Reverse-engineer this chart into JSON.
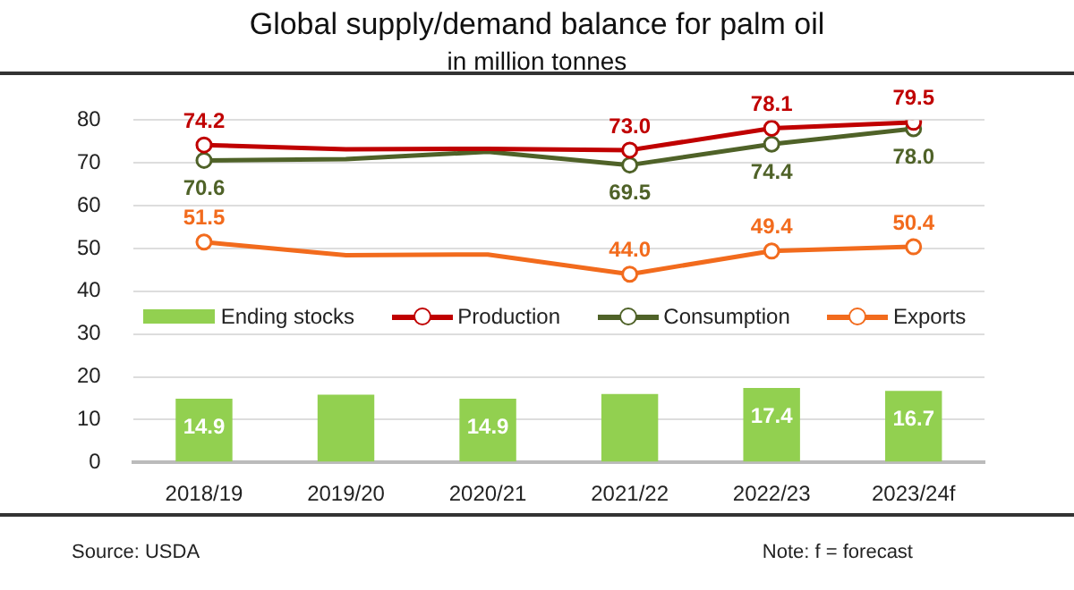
{
  "chart_data": {
    "type": "line",
    "title": "Global supply/demand balance for palm oil",
    "subtitle": "in million tonnes",
    "categories": [
      "2018/19",
      "2019/20",
      "2020/21",
      "2021/22",
      "2022/23",
      "2023/24f"
    ],
    "series": [
      {
        "name": "Ending stocks",
        "type": "bar",
        "color": "#92d050",
        "values": [
          14.9,
          15.8,
          14.9,
          16.0,
          17.4,
          16.7
        ],
        "value_labels": [
          "14.9",
          null,
          "14.9",
          null,
          "17.4",
          "16.7"
        ]
      },
      {
        "name": "Production",
        "color": "#c00000",
        "values": [
          74.2,
          73.2,
          73.3,
          73.0,
          78.1,
          79.5
        ],
        "value_labels": [
          "74.2",
          null,
          null,
          "73.0",
          "78.1",
          "79.5"
        ]
      },
      {
        "name": "Consumption",
        "color": "#4f6228",
        "values": [
          70.6,
          70.9,
          72.6,
          69.5,
          74.4,
          78.0
        ],
        "value_labels": [
          "70.6",
          null,
          null,
          "69.5",
          "74.4",
          "78.0"
        ]
      },
      {
        "name": "Exports",
        "color": "#f26b1d",
        "values": [
          51.5,
          48.4,
          48.6,
          44.0,
          49.4,
          50.4
        ],
        "value_labels": [
          "51.5",
          null,
          null,
          "44.0",
          "49.4",
          "50.4"
        ]
      }
    ],
    "ylim": [
      0,
      80
    ],
    "yticks": [
      0,
      10,
      20,
      30,
      40,
      50,
      60,
      70,
      80
    ],
    "grid": "y",
    "legend": "center",
    "marker": "circle",
    "annotations": [
      "Source: USDA",
      "Note: f = forecast"
    ]
  }
}
